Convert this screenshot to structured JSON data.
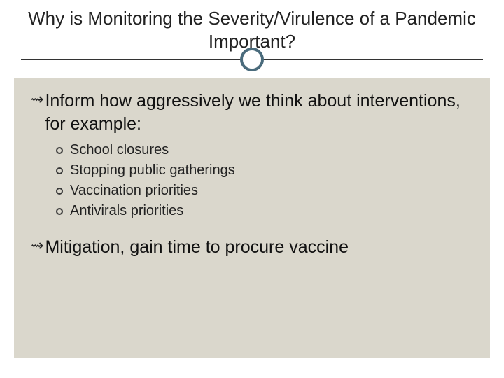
{
  "colors": {
    "background": "#ffffff",
    "body_bg": "#dad7cc",
    "circle_border": "#4a6b7c",
    "line": "#333333",
    "text": "#111111"
  },
  "title": "Why is Monitoring the Severity/Virulence of a Pandemic Important?",
  "bullets": [
    {
      "text": "Inform how aggressively we think about interventions, for example:",
      "sub": [
        "School closures",
        "Stopping public gatherings",
        "Vaccination priorities",
        "Antivirals priorities"
      ]
    },
    {
      "text": "Mitigation, gain time to procure vaccine",
      "sub": []
    }
  ],
  "main_glyph": "⇝"
}
